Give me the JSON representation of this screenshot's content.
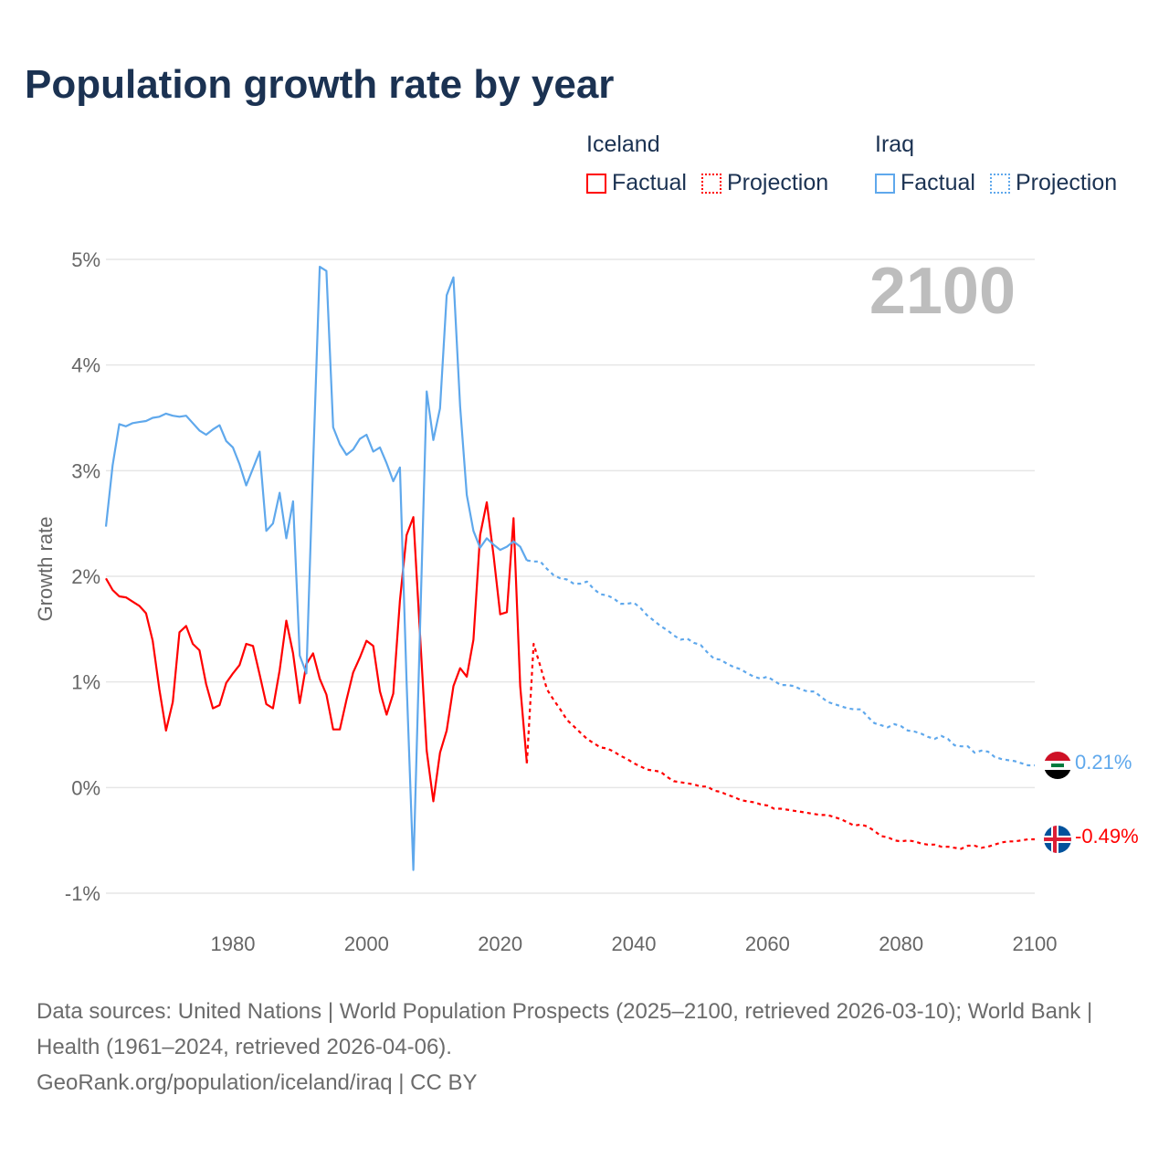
{
  "title": "Population growth rate by year",
  "legend": {
    "groups": [
      {
        "name": "Iceland",
        "factual": "Factual",
        "projection": "Projection",
        "color": "#ff0000"
      },
      {
        "name": "Iraq",
        "factual": "Factual",
        "projection": "Projection",
        "color": "#5fa8ec"
      }
    ]
  },
  "current_year": "2100",
  "end_labels": {
    "iraq": "0.21%",
    "iceland": "-0.49%"
  },
  "flags": {
    "iraq": "iraq-flag-icon",
    "iceland": "iceland-flag-icon"
  },
  "source": {
    "line1": "Data sources: United Nations | World Population Prospects (2025–2100, retrieved 2026-03-10); World Bank | Health (1961–2024, retrieved 2026-04-06).",
    "line2": "GeoRank.org/population/iceland/iraq | CC BY"
  },
  "chart_data": {
    "type": "line",
    "title": "Population growth rate by year",
    "xlabel": "",
    "ylabel": "Growth rate",
    "xlim": [
      1961,
      2100
    ],
    "ylim": [
      -1,
      5
    ],
    "x_ticks": [
      "1980",
      "2000",
      "2020",
      "2040",
      "2060",
      "2080",
      "2100"
    ],
    "y_ticks": [
      "-1%",
      "0%",
      "1%",
      "2%",
      "3%",
      "4%",
      "5%"
    ],
    "grid": true,
    "legend_position": "top-right",
    "series": [
      {
        "name": "Iceland",
        "type": "Factual",
        "start": 1961,
        "color": "#ff0000",
        "dashed": false,
        "values": [
          1.98,
          1.87,
          1.81,
          1.8,
          1.76,
          1.72,
          1.65,
          1.39,
          0.93,
          0.54,
          0.81,
          1.47,
          1.53,
          1.36,
          1.3,
          0.98,
          0.75,
          0.78,
          0.99,
          1.08,
          1.16,
          1.36,
          1.34,
          1.07,
          0.79,
          0.75,
          1.11,
          1.58,
          1.27,
          0.8,
          1.17,
          1.27,
          1.03,
          0.88,
          0.55,
          0.55,
          0.83,
          1.09,
          1.23,
          1.39,
          1.34,
          0.91,
          0.69,
          0.89,
          1.77,
          2.39,
          2.56,
          1.45,
          0.35,
          -0.13,
          0.33,
          0.54,
          0.96,
          1.13,
          1.05,
          1.4,
          2.39,
          2.7,
          2.2,
          1.64,
          1.66,
          2.55,
          0.96,
          0.23
        ]
      },
      {
        "name": "Iceland",
        "type": "Projection",
        "start": 2024,
        "color": "#ff0000",
        "dashed": true,
        "values": [
          0.23,
          1.36,
          1.15,
          0.93,
          0.83,
          0.74,
          0.64,
          0.58,
          0.52,
          0.46,
          0.42,
          0.38,
          0.37,
          0.34,
          0.3,
          0.27,
          0.23,
          0.2,
          0.17,
          0.16,
          0.15,
          0.1,
          0.06,
          0.05,
          0.04,
          0.03,
          0.01,
          0.01,
          -0.03,
          -0.04,
          -0.07,
          -0.09,
          -0.12,
          -0.13,
          -0.14,
          -0.16,
          -0.17,
          -0.2,
          -0.2,
          -0.21,
          -0.22,
          -0.23,
          -0.24,
          -0.25,
          -0.26,
          -0.26,
          -0.28,
          -0.3,
          -0.33,
          -0.36,
          -0.35,
          -0.37,
          -0.41,
          -0.46,
          -0.47,
          -0.5,
          -0.51,
          -0.5,
          -0.51,
          -0.53,
          -0.54,
          -0.54,
          -0.56,
          -0.56,
          -0.57,
          -0.58,
          -0.55,
          -0.55,
          -0.57,
          -0.56,
          -0.54,
          -0.52,
          -0.51,
          -0.51,
          -0.5,
          -0.49,
          -0.49
        ]
      },
      {
        "name": "Iraq",
        "type": "Factual",
        "start": 1961,
        "color": "#5fa8ec",
        "dashed": false,
        "values": [
          2.47,
          3.05,
          3.44,
          3.42,
          3.45,
          3.46,
          3.47,
          3.5,
          3.51,
          3.54,
          3.52,
          3.51,
          3.52,
          3.45,
          3.38,
          3.34,
          3.39,
          3.43,
          3.28,
          3.22,
          3.06,
          2.86,
          3.02,
          3.18,
          2.43,
          2.5,
          2.79,
          2.36,
          2.71,
          1.25,
          1.08,
          3.05,
          4.93,
          4.89,
          3.41,
          3.25,
          3.15,
          3.2,
          3.3,
          3.34,
          3.18,
          3.22,
          3.07,
          2.9,
          3.03,
          1.0,
          -0.78,
          1.5,
          3.75,
          3.29,
          3.59,
          4.66,
          4.83,
          3.61,
          2.77,
          2.43,
          2.27,
          2.36,
          2.3,
          2.25,
          2.28,
          2.33,
          2.28,
          2.15
        ]
      },
      {
        "name": "Iraq",
        "type": "Projection",
        "start": 2024,
        "color": "#5fa8ec",
        "dashed": true,
        "values": [
          2.15,
          2.14,
          2.14,
          2.07,
          2.01,
          1.98,
          1.97,
          1.93,
          1.93,
          1.95,
          1.88,
          1.83,
          1.82,
          1.79,
          1.74,
          1.74,
          1.75,
          1.7,
          1.63,
          1.58,
          1.53,
          1.49,
          1.44,
          1.4,
          1.41,
          1.37,
          1.35,
          1.28,
          1.22,
          1.21,
          1.17,
          1.14,
          1.12,
          1.08,
          1.05,
          1.03,
          1.05,
          1.01,
          0.97,
          0.97,
          0.96,
          0.93,
          0.91,
          0.91,
          0.86,
          0.81,
          0.79,
          0.77,
          0.75,
          0.74,
          0.74,
          0.67,
          0.61,
          0.59,
          0.57,
          0.6,
          0.58,
          0.54,
          0.53,
          0.51,
          0.48,
          0.46,
          0.49,
          0.46,
          0.4,
          0.39,
          0.39,
          0.33,
          0.35,
          0.34,
          0.29,
          0.27,
          0.26,
          0.25,
          0.23,
          0.21,
          0.21
        ]
      }
    ]
  }
}
